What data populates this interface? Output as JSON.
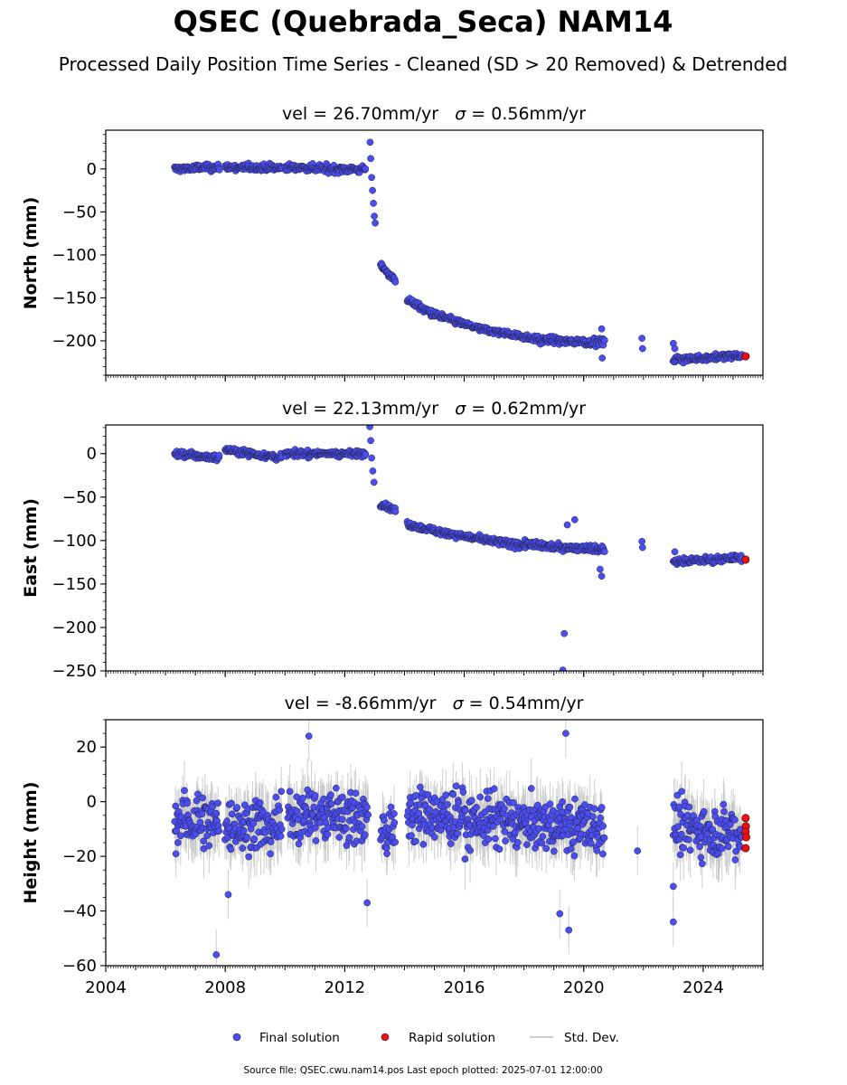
{
  "title": "QSEC (Quebrada_Seca) NAM14",
  "subtitle": "Processed Daily Position Time Series - Cleaned (SD > 20 Removed) & Detrended",
  "legend": {
    "final": "Final solution",
    "rapid": "Rapid solution",
    "std": "Std. Dev."
  },
  "source_note": "Source file: QSEC.cwu.nam14.pos  Last epoch plotted: 2025-07-01 12:00:00",
  "colors": {
    "final": "#4a4df0",
    "rapid": "#ee1111",
    "std": "#bdbdbd",
    "edge": "#222244"
  },
  "chart_data": [
    {
      "type": "scatter",
      "panel": "north",
      "title_prefix": "vel = 26.70mm/yr",
      "title_sigma": " = 0.56mm/yr",
      "ylabel": "North (mm)",
      "xlim": [
        2004.0,
        2026.0
      ],
      "ylim": [
        -240,
        45
      ],
      "yticks": [
        0,
        -50,
        -100,
        -150,
        -200
      ],
      "ytick_labels": [
        "0",
        "−50",
        "−100",
        "−150",
        "−200"
      ],
      "xticks": [
        2004,
        2008,
        2012,
        2016,
        2020,
        2024
      ],
      "grid": false,
      "segments": [
        {
          "x": [
            2006.3,
            2007.8
          ],
          "y": [
            0,
            2
          ],
          "scatter": 3.5
        },
        {
          "x": [
            2008.0,
            2009.9
          ],
          "y": [
            2,
            1
          ],
          "scatter": 3.5
        },
        {
          "x": [
            2010.0,
            2012.7
          ],
          "y": [
            2,
            -1
          ],
          "scatter": 3.5
        },
        {
          "x": [
            2013.2,
            2013.7
          ],
          "y": [
            -112,
            -130
          ],
          "scatter": 3.0
        },
        {
          "x": [
            2014.1,
            2014.9
          ],
          "y": [
            -152,
            -168
          ],
          "scatter": 3.0
        },
        {
          "x": [
            2014.9,
            2016.5
          ],
          "y": [
            -168,
            -186
          ],
          "scatter": 3.0
        },
        {
          "x": [
            2016.5,
            2018.5
          ],
          "y": [
            -186,
            -198
          ],
          "scatter": 3.0
        },
        {
          "x": [
            2018.5,
            2020.7
          ],
          "y": [
            -199,
            -202
          ],
          "scatter": 3.5
        },
        {
          "x": [
            2023.0,
            2025.3
          ],
          "y": [
            -222,
            -217
          ],
          "scatter": 3.0
        }
      ],
      "extra_points": [
        {
          "x": 2012.85,
          "y": 31
        },
        {
          "x": 2012.87,
          "y": 12
        },
        {
          "x": 2012.9,
          "y": -10
        },
        {
          "x": 2012.93,
          "y": -25
        },
        {
          "x": 2012.96,
          "y": -40
        },
        {
          "x": 2012.99,
          "y": -55
        },
        {
          "x": 2013.02,
          "y": -63
        },
        {
          "x": 2020.6,
          "y": -186
        },
        {
          "x": 2020.62,
          "y": -220
        },
        {
          "x": 2021.95,
          "y": -197
        },
        {
          "x": 2021.97,
          "y": -209
        },
        {
          "x": 2023.0,
          "y": -203
        },
        {
          "x": 2023.05,
          "y": -209
        }
      ],
      "rapid_points": [
        {
          "x": 2025.42,
          "y": -218
        }
      ]
    },
    {
      "type": "scatter",
      "panel": "east",
      "title_prefix": "vel = 22.13mm/yr",
      "title_sigma": " = 0.62mm/yr",
      "ylabel": "East (mm)",
      "xlim": [
        2004.0,
        2026.0
      ],
      "ylim": [
        -250,
        33
      ],
      "yticks": [
        0,
        -50,
        -100,
        -150,
        -200,
        -250
      ],
      "ytick_labels": [
        "0",
        "−50",
        "−100",
        "−150",
        "−200",
        "−250"
      ],
      "xticks": [
        2004,
        2008,
        2012,
        2016,
        2020,
        2024
      ],
      "grid": false,
      "segments": [
        {
          "x": [
            2006.3,
            2007.8
          ],
          "y": [
            0,
            -5
          ],
          "scatter": 3.0
        },
        {
          "x": [
            2008.0,
            2009.9
          ],
          "y": [
            5,
            -5
          ],
          "scatter": 3.0
        },
        {
          "x": [
            2010.0,
            2012.7
          ],
          "y": [
            0,
            0
          ],
          "scatter": 3.0
        },
        {
          "x": [
            2013.2,
            2013.7
          ],
          "y": [
            -58,
            -65
          ],
          "scatter": 2.5
        },
        {
          "x": [
            2014.1,
            2015.5
          ],
          "y": [
            -82,
            -92
          ],
          "scatter": 3.0
        },
        {
          "x": [
            2015.5,
            2017.5
          ],
          "y": [
            -92,
            -104
          ],
          "scatter": 3.0
        },
        {
          "x": [
            2017.5,
            2020.7
          ],
          "y": [
            -104,
            -110
          ],
          "scatter": 3.5
        },
        {
          "x": [
            2023.0,
            2025.3
          ],
          "y": [
            -124,
            -120
          ],
          "scatter": 3.0
        }
      ],
      "extra_points": [
        {
          "x": 2012.84,
          "y": 31
        },
        {
          "x": 2012.87,
          "y": 15
        },
        {
          "x": 2012.9,
          "y": -5
        },
        {
          "x": 2012.94,
          "y": -20
        },
        {
          "x": 2012.98,
          "y": -33
        },
        {
          "x": 2019.35,
          "y": -207
        },
        {
          "x": 2019.3,
          "y": -249
        },
        {
          "x": 2019.45,
          "y": -82
        },
        {
          "x": 2019.7,
          "y": -76
        },
        {
          "x": 2020.55,
          "y": -133
        },
        {
          "x": 2020.6,
          "y": -141
        },
        {
          "x": 2021.95,
          "y": -101
        },
        {
          "x": 2021.97,
          "y": -108
        },
        {
          "x": 2023.05,
          "y": -113
        }
      ],
      "rapid_points": [
        {
          "x": 2025.42,
          "y": -122
        }
      ]
    },
    {
      "type": "scatter",
      "panel": "height",
      "title_prefix": "vel = -8.66mm/yr",
      "title_sigma": " = 0.54mm/yr",
      "ylabel": "Height (mm)",
      "xlim": [
        2004.0,
        2026.0
      ],
      "ylim": [
        -60,
        30
      ],
      "yticks": [
        20,
        0,
        -20,
        -40,
        -60
      ],
      "ytick_labels": [
        "20",
        "0",
        "−20",
        "−40",
        "−60"
      ],
      "xticks": [
        2004,
        2008,
        2012,
        2016,
        2020,
        2024
      ],
      "xtick_labels": [
        "2004",
        "2008",
        "2012",
        "2016",
        "2020",
        "2024"
      ],
      "grid": false,
      "segments": [
        {
          "x": [
            2006.3,
            2007.8
          ],
          "y": [
            -7,
            -7
          ],
          "scatter": 8.0
        },
        {
          "x": [
            2008.0,
            2009.9
          ],
          "y": [
            -9,
            -8
          ],
          "scatter": 8.0
        },
        {
          "x": [
            2010.1,
            2012.8
          ],
          "y": [
            -4,
            -6
          ],
          "scatter": 8.0
        },
        {
          "x": [
            2013.2,
            2013.7
          ],
          "y": [
            -10,
            -12
          ],
          "scatter": 7.0
        },
        {
          "x": [
            2014.1,
            2020.7
          ],
          "y": [
            -5,
            -10
          ],
          "scatter": 8.0
        },
        {
          "x": [
            2023.0,
            2025.3
          ],
          "y": [
            -9,
            -11
          ],
          "scatter": 8.0
        }
      ],
      "extra_points": [
        {
          "x": 2007.7,
          "y": -56
        },
        {
          "x": 2008.1,
          "y": -34
        },
        {
          "x": 2010.8,
          "y": 24
        },
        {
          "x": 2012.75,
          "y": -37
        },
        {
          "x": 2019.4,
          "y": 25
        },
        {
          "x": 2019.5,
          "y": -47
        },
        {
          "x": 2019.2,
          "y": -41
        },
        {
          "x": 2021.8,
          "y": -18
        },
        {
          "x": 2023.0,
          "y": -44
        },
        {
          "x": 2023.0,
          "y": -31
        }
      ],
      "rapid_points": [
        {
          "x": 2025.42,
          "y": -6
        },
        {
          "x": 2025.43,
          "y": -9
        },
        {
          "x": 2025.42,
          "y": -11
        },
        {
          "x": 2025.44,
          "y": -13
        },
        {
          "x": 2025.42,
          "y": -17
        }
      ]
    }
  ]
}
